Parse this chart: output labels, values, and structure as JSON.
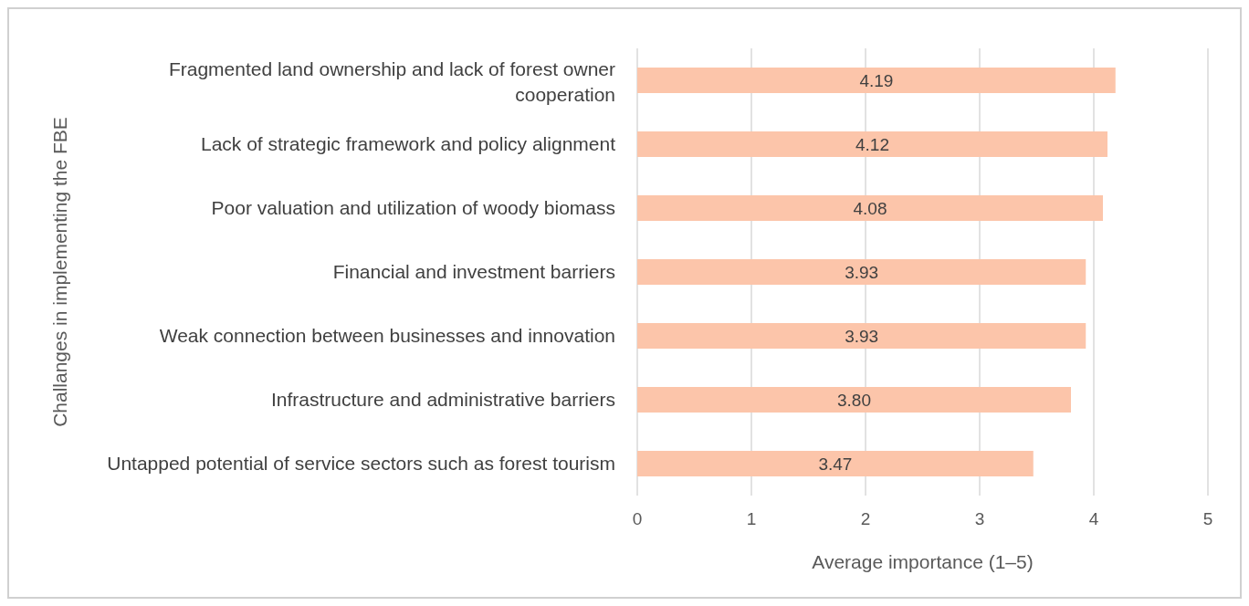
{
  "chart_data": {
    "type": "bar",
    "orientation": "horizontal",
    "xlabel": "Average importance (1–5)",
    "ylabel": "Challanges in implementing the FBE",
    "categories": [
      "Fragmented land ownership and lack of forest owner cooperation",
      "Lack of strategic framework and policy alignment",
      "Poor valuation and utilization of woody biomass",
      "Financial and investment barriers",
      "Weak connection between businesses and innovation",
      "Infrastructure and administrative barriers",
      "Untapped potential of service sectors such as forest tourism"
    ],
    "values": [
      4.19,
      4.12,
      4.08,
      3.93,
      3.93,
      3.8,
      3.47
    ],
    "value_labels": [
      "4.19",
      "4.12",
      "4.08",
      "3.93",
      "3.93",
      "3.80",
      "3.47"
    ],
    "color": "#fcc5aa",
    "xlim": [
      0,
      5
    ],
    "xticks": [
      0,
      1,
      2,
      3,
      4,
      5
    ],
    "grid": "x"
  }
}
